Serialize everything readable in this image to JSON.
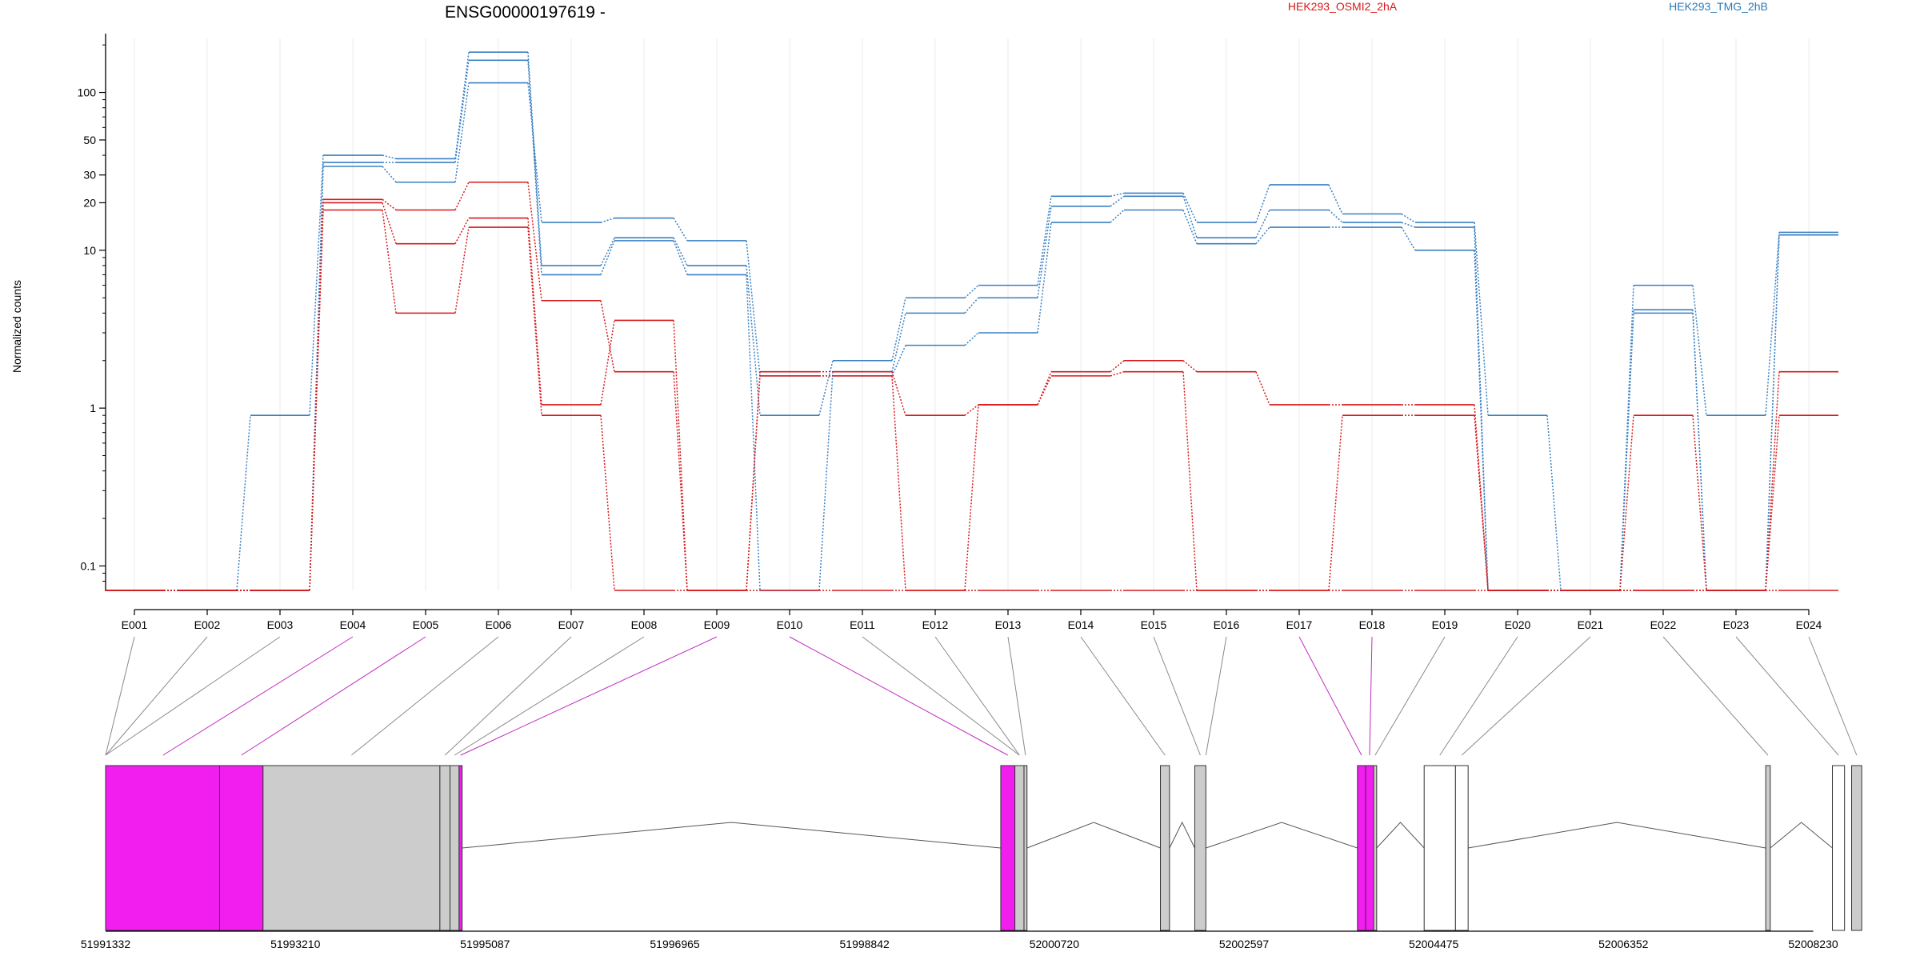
{
  "chart_data": {
    "type": "line",
    "title": "ENSG00000197619 -",
    "ylabel": "Normalized counts",
    "yscale": "log",
    "ylim": [
      0.07,
      220
    ],
    "yticks": [
      {
        "value": 0.1,
        "label": "0.1"
      },
      {
        "value": 1,
        "label": "1"
      },
      {
        "value": 10,
        "label": "10"
      },
      {
        "value": 20,
        "label": "20"
      },
      {
        "value": 30,
        "label": "30"
      },
      {
        "value": 50,
        "label": "50"
      },
      {
        "value": 100,
        "label": "100"
      }
    ],
    "floor_value": 0.07,
    "categories": [
      "E001",
      "E002",
      "E003",
      "E004",
      "E005",
      "E006",
      "E007",
      "E008",
      "E009",
      "E010",
      "E011",
      "E012",
      "E013",
      "E014",
      "E015",
      "E016",
      "E017",
      "E018",
      "E019",
      "E020",
      "E021",
      "E022",
      "E023",
      "E024"
    ],
    "legend": [
      {
        "label": "HEK293_OSMI2_2hA",
        "color": "#d7191c"
      },
      {
        "label": "HEK293_TMG_2hB",
        "color": "#2b7bba"
      }
    ],
    "series": [
      {
        "group": "HEK293_TMG_2hB",
        "color": "#3a80c2",
        "values": [
          0.07,
          0.07,
          0.9,
          40,
          38,
          180,
          8,
          12,
          8,
          0.9,
          2,
          5,
          6,
          22,
          23,
          15,
          26,
          17,
          15,
          0.9,
          0.07,
          6,
          0.9,
          13
        ]
      },
      {
        "group": "HEK293_TMG_2hB",
        "color": "#3a80c2",
        "values": [
          0.07,
          0.07,
          0.07,
          36,
          36,
          160,
          7,
          11.5,
          7,
          0.07,
          1.7,
          4,
          5,
          19,
          22,
          12,
          18,
          15,
          14,
          0.07,
          0.07,
          4.2,
          0.07,
          12.5
        ]
      },
      {
        "group": "HEK293_TMG_2hB",
        "color": "#3a80c2",
        "values": [
          0.07,
          0.07,
          0.07,
          34,
          27,
          115,
          15,
          16,
          11.5,
          1.6,
          1.6,
          2.5,
          3,
          15,
          18,
          11,
          14,
          14,
          10,
          0.07,
          0.07,
          4,
          0.07,
          12.5
        ]
      },
      {
        "group": "HEK293_OSMI2_2hA",
        "color": "#d7191c",
        "values": [
          0.07,
          0.07,
          0.07,
          21,
          18,
          27,
          4.8,
          1.7,
          0.07,
          1.7,
          1.7,
          0.9,
          1.05,
          1.7,
          2,
          1.7,
          1.05,
          1.05,
          1.05,
          0.07,
          0.07,
          0.9,
          0.07,
          1.7
        ]
      },
      {
        "group": "HEK293_OSMI2_2hA",
        "color": "#d7191c",
        "values": [
          0.07,
          0.07,
          0.07,
          20,
          11,
          16,
          1.05,
          3.6,
          0.07,
          1.6,
          1.6,
          0.07,
          1.05,
          1.6,
          1.7,
          0.07,
          0.07,
          0.9,
          0.9,
          0.07,
          0.07,
          0.07,
          0.07,
          0.9
        ]
      },
      {
        "group": "HEK293_OSMI2_2hA",
        "color": "#d7191c",
        "values": [
          0.07,
          0.07,
          0.07,
          18,
          4,
          14,
          0.9,
          0.07,
          0.07,
          0.07,
          0.07,
          0.07,
          0.07,
          0.07,
          0.07,
          0.07,
          0.07,
          0.07,
          0.07,
          0.07,
          0.07,
          0.07,
          0.07,
          0.07
        ]
      }
    ],
    "gene_model": {
      "genomic_range": [
        51991332,
        52008590
      ],
      "genomic_ticks": [
        51991332,
        51993210,
        51995087,
        51996965,
        51998842,
        52000720,
        52002597,
        52004475,
        52006352,
        52008230
      ],
      "exons": [
        {
          "start": 51991332,
          "end": 51992460,
          "fill": "#f21ef0"
        },
        {
          "start": 51992460,
          "end": 51992890,
          "fill": "#f21ef0"
        },
        {
          "start": 51992890,
          "end": 51994640,
          "fill": "#cccccc"
        },
        {
          "start": 51994640,
          "end": 51994740,
          "fill": "#cccccc"
        },
        {
          "start": 51994740,
          "end": 51994830,
          "fill": "#cccccc"
        },
        {
          "start": 51994830,
          "end": 51994860,
          "fill": "#f21ef0"
        },
        {
          "start": 52000190,
          "end": 52000330,
          "fill": "#f21ef0"
        },
        {
          "start": 52000330,
          "end": 52000420,
          "fill": "#cccccc"
        },
        {
          "start": 52000420,
          "end": 52000450,
          "fill": "#cccccc"
        },
        {
          "start": 52001770,
          "end": 52001860,
          "fill": "#cccccc"
        },
        {
          "start": 52002110,
          "end": 52002220,
          "fill": "#cccccc"
        },
        {
          "start": 52003720,
          "end": 52003800,
          "fill": "#f21ef0"
        },
        {
          "start": 52003800,
          "end": 52003880,
          "fill": "#f21ef0"
        },
        {
          "start": 52003880,
          "end": 52003910,
          "fill": "#cccccc"
        },
        {
          "start": 52004380,
          "end": 52004690,
          "fill": "#ffffff"
        },
        {
          "start": 52004690,
          "end": 52004815,
          "fill": "#ffffff"
        },
        {
          "start": 52007760,
          "end": 52007805,
          "fill": "#cccccc"
        },
        {
          "start": 52008420,
          "end": 52008540,
          "fill": "#ffffff"
        },
        {
          "start": 52008610,
          "end": 52008710,
          "fill": "#cccccc"
        }
      ],
      "introns": [
        {
          "start": 51994860,
          "end": 52000190
        },
        {
          "start": 52000450,
          "end": 52001770
        },
        {
          "start": 52001860,
          "end": 52002110
        },
        {
          "start": 52002220,
          "end": 52003720
        },
        {
          "start": 52003910,
          "end": 52004380
        },
        {
          "start": 52004815,
          "end": 52007760
        },
        {
          "start": 52007805,
          "end": 52008420
        }
      ],
      "mapping": [
        {
          "exon": "E001",
          "gpos": 51991332,
          "color": "#8a8a8a"
        },
        {
          "exon": "E002",
          "gpos": 51991332,
          "color": "#8a8a8a"
        },
        {
          "exon": "E003",
          "gpos": 51991332,
          "color": "#8a8a8a"
        },
        {
          "exon": "E004",
          "gpos": 51991900,
          "color": "#c02cc0"
        },
        {
          "exon": "E005",
          "gpos": 51992675,
          "color": "#c02cc0"
        },
        {
          "exon": "E006",
          "gpos": 51993765,
          "color": "#8a8a8a"
        },
        {
          "exon": "E007",
          "gpos": 51994690,
          "color": "#8a8a8a"
        },
        {
          "exon": "E008",
          "gpos": 51994785,
          "color": "#8a8a8a"
        },
        {
          "exon": "E009",
          "gpos": 51994845,
          "color": "#c02cc0"
        },
        {
          "exon": "E010",
          "gpos": 52000260,
          "color": "#c02cc0"
        },
        {
          "exon": "E011",
          "gpos": 52000375,
          "color": "#8a8a8a"
        },
        {
          "exon": "E012",
          "gpos": 52000375,
          "color": "#8a8a8a"
        },
        {
          "exon": "E013",
          "gpos": 52000435,
          "color": "#8a8a8a"
        },
        {
          "exon": "E014",
          "gpos": 52001815,
          "color": "#8a8a8a"
        },
        {
          "exon": "E015",
          "gpos": 52002165,
          "color": "#8a8a8a"
        },
        {
          "exon": "E016",
          "gpos": 52002220,
          "color": "#8a8a8a"
        },
        {
          "exon": "E017",
          "gpos": 52003760,
          "color": "#c02cc0"
        },
        {
          "exon": "E018",
          "gpos": 52003840,
          "color": "#c02cc0"
        },
        {
          "exon": "E019",
          "gpos": 52003895,
          "color": "#8a8a8a"
        },
        {
          "exon": "E020",
          "gpos": 52004535,
          "color": "#8a8a8a"
        },
        {
          "exon": "E021",
          "gpos": 52004752,
          "color": "#8a8a8a"
        },
        {
          "exon": "E022",
          "gpos": 52007782,
          "color": "#8a8a8a"
        },
        {
          "exon": "E023",
          "gpos": 52008480,
          "color": "#8a8a8a"
        },
        {
          "exon": "E024",
          "gpos": 52008660,
          "color": "#8a8a8a"
        }
      ]
    }
  }
}
